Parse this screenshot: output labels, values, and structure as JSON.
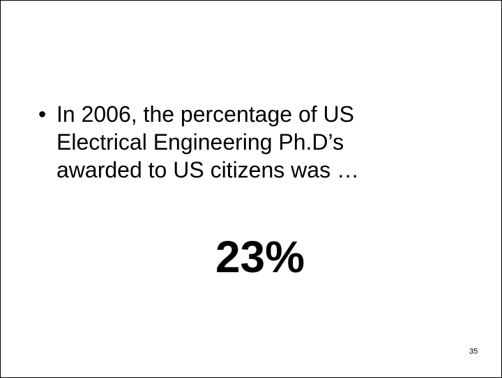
{
  "slide": {
    "bullet": {
      "symbol": "•",
      "lines": [
        "In 2006, the percentage of US",
        "Electrical Engineering Ph.D’s",
        "awarded to US citizens was …"
      ]
    },
    "answer": "23%",
    "page_number": "35"
  }
}
